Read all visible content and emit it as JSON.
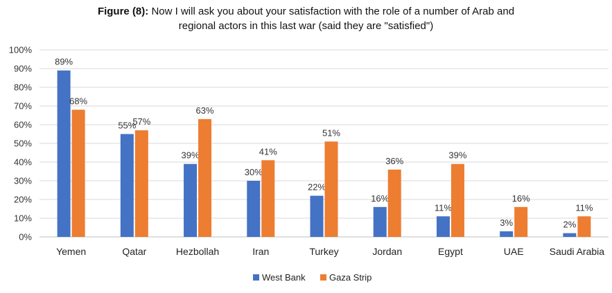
{
  "title": {
    "lead": "Figure (8):",
    "line1": " Now I will ask you about your satisfaction with the role of a number of Arab and",
    "line2": "regional actors in this last war (said they are \"satisfied\")"
  },
  "colors": {
    "west_bank": "#4472C4",
    "gaza_strip": "#ED7D31",
    "grid": "#d9d9d9",
    "axis": "#bfbfbf"
  },
  "chart_data": {
    "type": "bar",
    "categories": [
      "Yemen",
      "Qatar",
      "Hezbollah",
      "Iran",
      "Turkey",
      "Jordan",
      "Egypt",
      "UAE",
      "Saudi Arabia"
    ],
    "series": [
      {
        "name": "West Bank",
        "values": [
          89,
          55,
          39,
          30,
          22,
          16,
          11,
          3,
          2
        ]
      },
      {
        "name": "Gaza Strip",
        "values": [
          68,
          57,
          63,
          41,
          51,
          36,
          39,
          16,
          11
        ]
      }
    ],
    "ylim": [
      0,
      100
    ],
    "yticks": [
      "0%",
      "10%",
      "20%",
      "30%",
      "40%",
      "50%",
      "60%",
      "70%",
      "80%",
      "90%",
      "100%"
    ],
    "value_suffix": "%",
    "grid": true,
    "legend_position": "bottom"
  }
}
